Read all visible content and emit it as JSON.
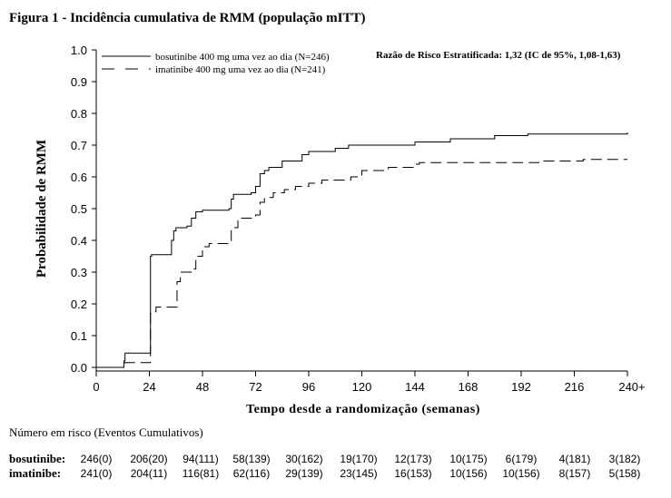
{
  "chart_data": {
    "type": "line",
    "title": "Figura 1 - Incidência cumulativa de RMM (população mITT)",
    "xlabel": "Tempo desde a randomização (semanas)",
    "ylabel": "Probabilidade de RMM",
    "xlim": [
      0,
      240
    ],
    "ylim": [
      0,
      1.0
    ],
    "x_ticks": [
      0,
      24,
      48,
      72,
      96,
      120,
      144,
      168,
      192,
      216,
      240
    ],
    "x_tick_labels": [
      "0",
      "24",
      "48",
      "72",
      "96",
      "120",
      "144",
      "168",
      "192",
      "216",
      "240+"
    ],
    "y_ticks": [
      0.0,
      0.1,
      0.2,
      0.3,
      0.4,
      0.5,
      0.6,
      0.7,
      0.8,
      0.9,
      1.0
    ],
    "y_tick_labels": [
      "0.0",
      "0.1",
      "0.2",
      "0.3",
      "0.4",
      "0.5",
      "0.6",
      "0.7",
      "0.8",
      "0.9",
      "1.0"
    ],
    "grid": false,
    "legend_position": "top-left",
    "annotation": "Razão de Risco Estratificada: 1,32 (IC de 95%, 1,08-1,63)",
    "series": [
      {
        "name": "bosutinibe 400 mg uma vez ao dia (N=246)",
        "style": "solid",
        "color": "#000000",
        "points": [
          [
            0,
            0.0
          ],
          [
            12,
            0.0
          ],
          [
            12.5,
            0.02
          ],
          [
            13,
            0.045
          ],
          [
            24,
            0.045
          ],
          [
            24.5,
            0.35
          ],
          [
            25,
            0.355
          ],
          [
            33,
            0.355
          ],
          [
            34,
            0.4
          ],
          [
            35,
            0.43
          ],
          [
            36,
            0.44
          ],
          [
            41,
            0.445
          ],
          [
            43,
            0.47
          ],
          [
            45,
            0.49
          ],
          [
            48,
            0.495
          ],
          [
            60,
            0.5
          ],
          [
            61,
            0.53
          ],
          [
            62,
            0.545
          ],
          [
            70,
            0.55
          ],
          [
            72,
            0.57
          ],
          [
            74,
            0.61
          ],
          [
            76,
            0.62
          ],
          [
            78,
            0.63
          ],
          [
            84,
            0.65
          ],
          [
            93,
            0.67
          ],
          [
            96,
            0.68
          ],
          [
            108,
            0.69
          ],
          [
            114,
            0.7
          ],
          [
            144,
            0.71
          ],
          [
            160,
            0.72
          ],
          [
            180,
            0.73
          ],
          [
            195,
            0.735
          ],
          [
            240,
            0.74
          ]
        ]
      },
      {
        "name": "imatinibe 400 mg uma vez ao dia (N=241)",
        "style": "dashed",
        "color": "#000000",
        "points": [
          [
            0,
            0.0
          ],
          [
            12,
            0.0
          ],
          [
            12.5,
            0.01
          ],
          [
            13,
            0.015
          ],
          [
            24,
            0.015
          ],
          [
            24.5,
            0.17
          ],
          [
            25,
            0.175
          ],
          [
            27,
            0.19
          ],
          [
            36,
            0.19
          ],
          [
            36.5,
            0.27
          ],
          [
            38,
            0.3
          ],
          [
            43,
            0.31
          ],
          [
            45,
            0.35
          ],
          [
            48,
            0.38
          ],
          [
            51,
            0.39
          ],
          [
            60,
            0.39
          ],
          [
            61,
            0.44
          ],
          [
            64,
            0.47
          ],
          [
            72,
            0.48
          ],
          [
            74,
            0.52
          ],
          [
            76,
            0.535
          ],
          [
            80,
            0.55
          ],
          [
            85,
            0.56
          ],
          [
            90,
            0.57
          ],
          [
            96,
            0.58
          ],
          [
            102,
            0.59
          ],
          [
            115,
            0.6
          ],
          [
            120,
            0.62
          ],
          [
            132,
            0.63
          ],
          [
            144,
            0.64
          ],
          [
            146,
            0.645
          ],
          [
            185,
            0.645
          ],
          [
            200,
            0.65
          ],
          [
            220,
            0.655
          ],
          [
            240,
            0.655
          ]
        ]
      }
    ]
  },
  "risk_table": {
    "title": "Número em risco (Eventos Cumulativos)",
    "rows": [
      {
        "label": "bosutinibe:",
        "values": [
          "246(0)",
          "206(20)",
          "94(111)",
          "58(139)",
          "30(162)",
          "19(170)",
          "12(173)",
          "10(175)",
          "6(179)",
          "4(181)",
          "3(182)"
        ]
      },
      {
        "label": "imatinibe:",
        "values": [
          "241(0)",
          "204(11)",
          "116(81)",
          "62(116)",
          "29(139)",
          "23(145)",
          "16(153)",
          "10(156)",
          "10(156)",
          "8(157)",
          "5(158)"
        ]
      }
    ]
  }
}
